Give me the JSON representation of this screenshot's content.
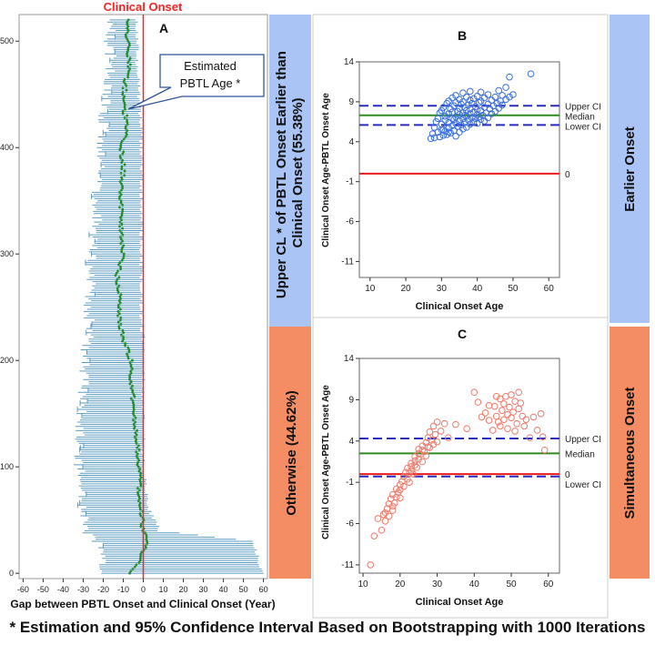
{
  "figure": {
    "footnote": "* Estimation and 95% Confidence Interval Based on Bootstrapping with 1000 Iterations"
  },
  "colors": {
    "blue_band": "#a9c4f5",
    "orange_band": "#f48d63",
    "ci_bar": "#5b9bc2",
    "estimate": "#1f8a2e",
    "onset_line": "#ff2020",
    "blue_circle": "#3a6fe0",
    "red_circle": "#f07a6a",
    "ci_dash": "#2b2bbf",
    "median": "#2e8b1f",
    "zero": "#e81c1c"
  },
  "side_bands": {
    "left_top": "Upper CL * of PBTL Onset Earlier than Clinical Onset (55.38%)",
    "left_bottom": "Otherwise (44.62%)",
    "right_top": "Earlier Onset",
    "right_bottom": "Simultaneous Onset"
  },
  "chart_data": [
    {
      "id": "A",
      "type": "errorbar",
      "panel_label": "A",
      "title": "Clinical Onset",
      "xlabel": "Gap between PBTL Onset and Clinical Onset (Year)",
      "ylabel": "",
      "xlim": [
        -62,
        62
      ],
      "ylim": [
        -5,
        525
      ],
      "xticks": [
        -60,
        -50,
        -40,
        -30,
        -20,
        -10,
        0,
        10,
        20,
        30,
        40,
        50,
        60
      ],
      "yticks": [
        0,
        100,
        200,
        300,
        400,
        500
      ],
      "reference_line": 0,
      "annotation": [
        "Estimated",
        "PBTL Age *"
      ],
      "series_description": "520 subjects sorted by upper confidence limit of the onset gap; points show estimated gap, bars show 95% confidence interval",
      "rows": [
        {
          "y": 520,
          "est": -8,
          "lo": -14,
          "hi": -3
        },
        {
          "y": 500,
          "est": -8,
          "lo": -16,
          "hi": -3
        },
        {
          "y": 480,
          "est": -7,
          "lo": -15,
          "hi": -3
        },
        {
          "y": 460,
          "est": -9,
          "lo": -16,
          "hi": -2
        },
        {
          "y": 440,
          "est": -10,
          "lo": -18,
          "hi": -2
        },
        {
          "y": 420,
          "est": -8,
          "lo": -19,
          "hi": -1
        },
        {
          "y": 400,
          "est": -11,
          "lo": -20,
          "hi": -1
        },
        {
          "y": 380,
          "est": -10,
          "lo": -20,
          "hi": -1
        },
        {
          "y": 360,
          "est": -11,
          "lo": -22,
          "hi": -1
        },
        {
          "y": 340,
          "est": -11,
          "lo": -22,
          "hi": -1
        },
        {
          "y": 320,
          "est": -11,
          "lo": -23,
          "hi": -1
        },
        {
          "y": 300,
          "est": -10,
          "lo": -25,
          "hi": -1
        },
        {
          "y": 280,
          "est": -13,
          "lo": -25,
          "hi": -1
        },
        {
          "y": 260,
          "est": -12,
          "lo": -26,
          "hi": -1
        },
        {
          "y": 240,
          "est": -12,
          "lo": -26,
          "hi": -1
        },
        {
          "y": 220,
          "est": -10,
          "lo": -27,
          "hi": 0
        },
        {
          "y": 200,
          "est": -6,
          "lo": -28,
          "hi": 0
        },
        {
          "y": 180,
          "est": -6,
          "lo": -29,
          "hi": 0
        },
        {
          "y": 160,
          "est": -5,
          "lo": -30,
          "hi": 0
        },
        {
          "y": 140,
          "est": -4,
          "lo": -30,
          "hi": 0
        },
        {
          "y": 120,
          "est": -3,
          "lo": -31,
          "hi": 0
        },
        {
          "y": 100,
          "est": -2,
          "lo": -31,
          "hi": 0
        },
        {
          "y": 80,
          "est": -2,
          "lo": -30,
          "hi": 1
        },
        {
          "y": 60,
          "est": -1,
          "lo": -30,
          "hi": 3
        },
        {
          "y": 40,
          "est": 0,
          "lo": -28,
          "hi": 8
        },
        {
          "y": 30,
          "est": 2,
          "lo": -22,
          "hi": 55
        },
        {
          "y": 20,
          "est": 0,
          "lo": -20,
          "hi": 56
        },
        {
          "y": 10,
          "est": -3,
          "lo": -20,
          "hi": 58
        },
        {
          "y": 0,
          "est": -6,
          "lo": -20,
          "hi": 60
        }
      ]
    },
    {
      "id": "B",
      "type": "scatter",
      "panel_label": "B",
      "xlabel": "Clinical Onset Age",
      "ylabel": "Clinical Onset Age-PBTL Onset Age",
      "xlim": [
        7,
        63
      ],
      "ylim": [
        -13,
        14
      ],
      "xticks": [
        10,
        20,
        30,
        40,
        50,
        60
      ],
      "yticks": [
        14,
        9,
        4,
        -1,
        -6,
        -11
      ],
      "hlines": [
        {
          "name": "Upper CI",
          "value": 8.5,
          "style": "dash"
        },
        {
          "name": "Median",
          "value": 7.3,
          "style": "solid"
        },
        {
          "name": "Lower CI",
          "value": 6.1,
          "style": "dash"
        },
        {
          "name": "0",
          "value": 0,
          "style": "solid"
        }
      ],
      "points": [
        [
          27,
          4.4
        ],
        [
          27.5,
          5
        ],
        [
          28,
          4.5
        ],
        [
          28,
          5.8
        ],
        [
          28.5,
          6.5
        ],
        [
          29,
          5.2
        ],
        [
          29,
          6.9
        ],
        [
          29.5,
          4.6
        ],
        [
          29.5,
          7.6
        ],
        [
          30,
          5.5
        ],
        [
          30,
          6.2
        ],
        [
          30,
          7.9
        ],
        [
          30.5,
          4.8
        ],
        [
          30.5,
          8.3
        ],
        [
          31,
          5.3
        ],
        [
          31,
          6.7
        ],
        [
          31,
          7.2
        ],
        [
          31.5,
          4.9
        ],
        [
          31.5,
          8.8
        ],
        [
          32,
          5.7
        ],
        [
          32,
          6.4
        ],
        [
          32,
          7.5
        ],
        [
          32,
          9.1
        ],
        [
          32.5,
          5.1
        ],
        [
          32.5,
          8.1
        ],
        [
          33,
          6
        ],
        [
          33,
          6.9
        ],
        [
          33,
          7.7
        ],
        [
          33,
          9.5
        ],
        [
          33.5,
          5.4
        ],
        [
          33.5,
          8.5
        ],
        [
          34,
          4.7
        ],
        [
          34,
          6.3
        ],
        [
          34,
          7.1
        ],
        [
          34,
          8.9
        ],
        [
          34,
          9.8
        ],
        [
          34.5,
          5.9
        ],
        [
          34.5,
          7.8
        ],
        [
          35,
          5.2
        ],
        [
          35,
          6.6
        ],
        [
          35,
          7.4
        ],
        [
          35,
          8.2
        ],
        [
          35,
          9.3
        ],
        [
          35.5,
          6.1
        ],
        [
          35.5,
          8.7
        ],
        [
          36,
          5.6
        ],
        [
          36,
          6.9
        ],
        [
          36,
          7.6
        ],
        [
          36,
          9
        ],
        [
          36,
          10.1
        ],
        [
          36.5,
          6.4
        ],
        [
          36.5,
          8.3
        ],
        [
          37,
          5.8
        ],
        [
          37,
          7.2
        ],
        [
          37,
          7.9
        ],
        [
          37,
          9.6
        ],
        [
          37.5,
          6.7
        ],
        [
          37.5,
          8.6
        ],
        [
          38,
          6.2
        ],
        [
          38,
          7.5
        ],
        [
          38,
          8.1
        ],
        [
          38,
          9.2
        ],
        [
          38,
          10.3
        ],
        [
          38.5,
          7
        ],
        [
          38.5,
          8.8
        ],
        [
          39,
          6.5
        ],
        [
          39,
          7.7
        ],
        [
          39,
          9.4
        ],
        [
          39.5,
          6.9
        ],
        [
          39.5,
          8.4
        ],
        [
          40,
          6.3
        ],
        [
          40,
          7.4
        ],
        [
          40,
          8
        ],
        [
          40,
          9.7
        ],
        [
          40.5,
          7.1
        ],
        [
          40.5,
          8.9
        ],
        [
          41,
          6.8
        ],
        [
          41,
          7.9
        ],
        [
          41,
          9.1
        ],
        [
          41,
          10.2
        ],
        [
          41.5,
          7.3
        ],
        [
          42,
          6.6
        ],
        [
          42,
          8.3
        ],
        [
          42,
          9.5
        ],
        [
          42.5,
          7.6
        ],
        [
          43,
          7
        ],
        [
          43,
          8.7
        ],
        [
          43,
          9.9
        ],
        [
          43.5,
          8.1
        ],
        [
          44,
          7.5
        ],
        [
          44,
          9.2
        ],
        [
          44.5,
          8.5
        ],
        [
          45,
          7.8
        ],
        [
          45,
          9.6
        ],
        [
          45.5,
          8.8
        ],
        [
          46,
          8.2
        ],
        [
          46,
          10.4
        ],
        [
          46.5,
          9.1
        ],
        [
          47,
          8.6
        ],
        [
          47,
          9.8
        ],
        [
          48,
          9.3
        ],
        [
          48,
          10.8
        ],
        [
          49,
          9.6
        ],
        [
          49,
          12.1
        ],
        [
          50,
          9.9
        ],
        [
          55,
          12.5
        ],
        [
          30.5,
          5.5
        ],
        [
          32,
          5.2
        ],
        [
          33.5,
          6.8
        ],
        [
          36.5,
          7.3
        ]
      ]
    },
    {
      "id": "C",
      "type": "scatter",
      "panel_label": "C",
      "xlabel": "Clinical Onset Age",
      "ylabel": "Clinical Onset Age-PBTL Onset Age",
      "xlim": [
        9,
        63
      ],
      "ylim": [
        -12,
        14
      ],
      "xticks": [
        10,
        20,
        30,
        40,
        50,
        60
      ],
      "yticks": [
        14,
        9,
        4,
        -1,
        -6,
        -11
      ],
      "hlines": [
        {
          "name": "Upper CI",
          "value": 4.3,
          "style": "dash"
        },
        {
          "name": "Median",
          "value": 2.5,
          "style": "solid"
        },
        {
          "name": "0",
          "value": 0,
          "style": "solid"
        },
        {
          "name": "Lower CI",
          "value": -0.3,
          "style": "dash"
        }
      ],
      "points": [
        [
          12,
          -11
        ],
        [
          13,
          -7.5
        ],
        [
          15,
          -6.8
        ],
        [
          15.5,
          -4.9
        ],
        [
          16,
          -5.7
        ],
        [
          16.5,
          -4.2
        ],
        [
          17,
          -3.6
        ],
        [
          17,
          -5.1
        ],
        [
          17.5,
          -3
        ],
        [
          18,
          -4.4
        ],
        [
          18,
          -2.5
        ],
        [
          18.5,
          -3.5
        ],
        [
          19,
          -2.8
        ],
        [
          19,
          -1.8
        ],
        [
          19.5,
          -2.2
        ],
        [
          20,
          -1.3
        ],
        [
          20,
          -2.9
        ],
        [
          20.5,
          -0.9
        ],
        [
          21,
          -1.5
        ],
        [
          21,
          -0.3
        ],
        [
          21.5,
          0.2
        ],
        [
          22,
          -0.6
        ],
        [
          22,
          0.7
        ],
        [
          22.5,
          -1
        ],
        [
          23,
          0.4
        ],
        [
          23,
          1.3
        ],
        [
          23.5,
          0
        ],
        [
          24,
          1.1
        ],
        [
          24,
          2.1
        ],
        [
          24.5,
          0.8
        ],
        [
          25,
          1.8
        ],
        [
          25,
          3
        ],
        [
          25.5,
          2.4
        ],
        [
          26,
          1.5
        ],
        [
          26,
          3.4
        ],
        [
          26.5,
          2.7
        ],
        [
          27,
          3.8
        ],
        [
          27,
          2.2
        ],
        [
          27.5,
          4.4
        ],
        [
          28,
          3.2
        ],
        [
          28,
          5.1
        ],
        [
          28.5,
          4.1
        ],
        [
          29,
          3.6
        ],
        [
          29,
          5.8
        ],
        [
          29.5,
          4.8
        ],
        [
          30,
          3.9
        ],
        [
          30,
          6.3
        ],
        [
          31,
          5.2
        ],
        [
          32,
          6.1
        ],
        [
          33,
          4.4
        ],
        [
          35,
          6
        ],
        [
          38,
          5.5
        ],
        [
          40,
          9.9
        ],
        [
          41,
          8.7
        ],
        [
          42,
          6.9
        ],
        [
          43,
          7.4
        ],
        [
          44,
          6.5
        ],
        [
          45,
          5.3
        ],
        [
          45.5,
          8.2
        ],
        [
          46,
          7
        ],
        [
          46.5,
          6.3
        ],
        [
          47,
          9.1
        ],
        [
          47,
          5.8
        ],
        [
          47.5,
          7.7
        ],
        [
          48,
          6.6
        ],
        [
          48,
          8.5
        ],
        [
          48.5,
          9.4
        ],
        [
          49,
          5.5
        ],
        [
          49,
          7.2
        ],
        [
          49.5,
          8.1
        ],
        [
          50,
          6.8
        ],
        [
          50,
          9.6
        ],
        [
          50.5,
          7.5
        ],
        [
          51,
          5.2
        ],
        [
          51,
          8.8
        ],
        [
          51.5,
          6.1
        ],
        [
          52,
          7.9
        ],
        [
          52,
          9.9
        ],
        [
          53,
          7
        ],
        [
          53.5,
          5.8
        ],
        [
          54,
          6.6
        ],
        [
          55,
          4.4
        ],
        [
          56,
          6.9
        ],
        [
          57,
          5.3
        ],
        [
          58,
          7.3
        ],
        [
          59,
          2.9
        ],
        [
          58.5,
          4.5
        ],
        [
          44,
          8.3
        ],
        [
          46,
          9.4
        ],
        [
          52.5,
          8.6
        ],
        [
          24,
          1.6
        ],
        [
          26,
          2.9
        ],
        [
          27.5,
          3.3
        ],
        [
          22.5,
          0.1
        ],
        [
          20,
          -1.9
        ],
        [
          18,
          -3.9
        ],
        [
          16,
          -4.7
        ],
        [
          14,
          -5.4
        ],
        [
          25,
          2.5
        ],
        [
          23,
          0.9
        ]
      ]
    }
  ]
}
